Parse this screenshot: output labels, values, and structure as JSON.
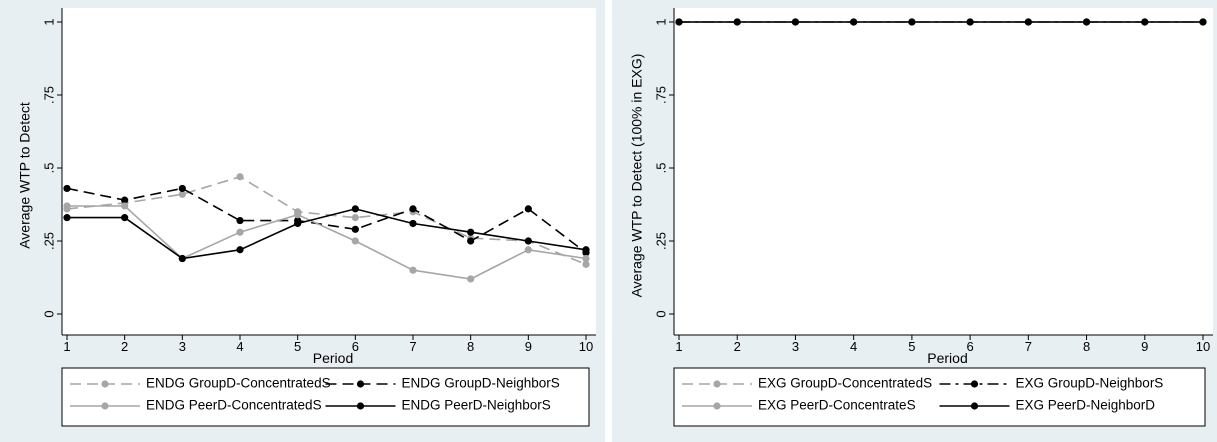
{
  "chart_data": [
    {
      "type": "line",
      "xlabel": "Period",
      "ylabel": "Average WTP to Detect",
      "x": [
        1,
        2,
        3,
        4,
        5,
        6,
        7,
        8,
        9,
        10
      ],
      "xlim": [
        1,
        10
      ],
      "ylim": [
        0,
        1
      ],
      "yticks": [
        0,
        0.25,
        0.5,
        0.75,
        1
      ],
      "ytick_labels": [
        "0",
        ".25",
        ".5",
        ".75",
        "1"
      ],
      "xticks": [
        "1",
        "2",
        "3",
        "4",
        "5",
        "6",
        "7",
        "8",
        "9",
        "10"
      ],
      "grid": false,
      "legend_position": "bottom",
      "series": [
        {
          "name": "ENDG GroupD-ConcentratedS",
          "color": "#a6a6a6",
          "dash": "dashed",
          "values": [
            0.36,
            0.38,
            0.41,
            0.47,
            0.35,
            0.33,
            0.35,
            0.26,
            0.25,
            0.17
          ]
        },
        {
          "name": "ENDG GroupD-NeighborS",
          "color": "#000000",
          "dash": "dashed",
          "values": [
            0.43,
            0.39,
            0.43,
            0.32,
            0.32,
            0.29,
            0.36,
            0.25,
            0.36,
            0.21
          ]
        },
        {
          "name": "ENDG PeerD-ConcentratedS",
          "color": "#a6a6a6",
          "dash": "solid",
          "values": [
            0.37,
            0.37,
            0.19,
            0.28,
            0.34,
            0.25,
            0.15,
            0.12,
            0.22,
            0.19
          ]
        },
        {
          "name": "ENDG PeerD-NeighborS",
          "color": "#000000",
          "dash": "solid",
          "values": [
            0.33,
            0.33,
            0.19,
            0.22,
            0.31,
            0.36,
            0.31,
            0.28,
            0.25,
            0.22
          ]
        }
      ]
    },
    {
      "type": "line",
      "xlabel": "Period",
      "ylabel": "Average WTP to Detect (100% in EXG)",
      "x": [
        1,
        2,
        3,
        4,
        5,
        6,
        7,
        8,
        9,
        10
      ],
      "xlim": [
        1,
        10
      ],
      "ylim": [
        0,
        1
      ],
      "yticks": [
        0,
        0.25,
        0.5,
        0.75,
        1
      ],
      "ytick_labels": [
        "0",
        ".25",
        ".5",
        ".75",
        "1"
      ],
      "xticks": [
        "1",
        "2",
        "3",
        "4",
        "5",
        "6",
        "7",
        "8",
        "9",
        "10"
      ],
      "grid": false,
      "legend_position": "bottom",
      "series": [
        {
          "name": "EXG GroupD-ConcentratedS",
          "color": "#a6a6a6",
          "dash": "dashed",
          "values": [
            1,
            1,
            1,
            1,
            1,
            1,
            1,
            1,
            1,
            1
          ]
        },
        {
          "name": "EXG GroupD-NeighborS",
          "color": "#000000",
          "dash": "dashdot",
          "values": [
            1,
            1,
            1,
            1,
            1,
            1,
            1,
            1,
            1,
            1
          ]
        },
        {
          "name": "EXG PeerD-ConcentrateS",
          "color": "#a6a6a6",
          "dash": "solid",
          "values": [
            1,
            1,
            1,
            1,
            1,
            1,
            1,
            1,
            1,
            1
          ]
        },
        {
          "name": "EXG PeerD-NeighborD",
          "color": "#000000",
          "dash": "solid",
          "values": [
            1,
            1,
            1,
            1,
            1,
            1,
            1,
            1,
            1,
            1
          ]
        }
      ]
    }
  ]
}
